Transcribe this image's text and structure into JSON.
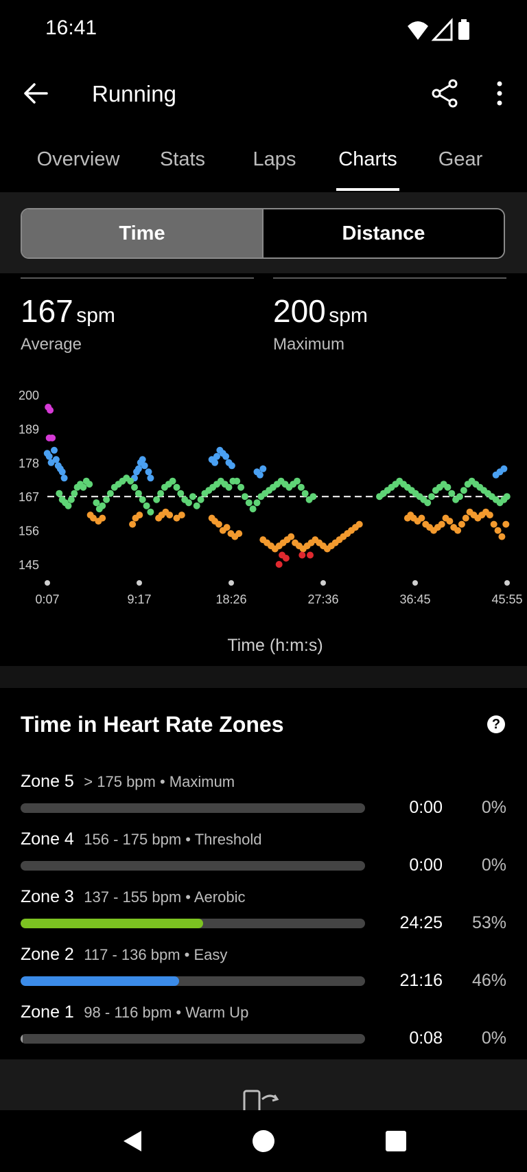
{
  "status_bar": {
    "time": "16:41",
    "icons": [
      "wifi-icon",
      "cell-signal-icon",
      "battery-icon"
    ]
  },
  "app_bar": {
    "title": "Running",
    "icons": [
      "back-arrow-icon",
      "share-icon",
      "more-vert-icon"
    ]
  },
  "tabs": [
    {
      "label": "Overview",
      "active": false
    },
    {
      "label": "Stats",
      "active": false
    },
    {
      "label": "Laps",
      "active": false
    },
    {
      "label": "Charts",
      "active": true
    },
    {
      "label": "Gear",
      "active": false
    }
  ],
  "segmented": {
    "time": "Time",
    "distance": "Distance",
    "selected": "time"
  },
  "stats": {
    "average": {
      "value": "167",
      "unit": "spm",
      "label": "Average"
    },
    "maximum": {
      "value": "200",
      "unit": "spm",
      "label": "Maximum"
    }
  },
  "chart_data": {
    "type": "scatter",
    "xlabel": "Time (h:m:s)",
    "ylabel": "",
    "y_ticks": [
      "200",
      "189",
      "178",
      "167",
      "156",
      "145"
    ],
    "x_ticks": [
      "0:07",
      "9:17",
      "18:26",
      "27:36",
      "36:45",
      "45:55"
    ],
    "ylim": [
      140,
      205
    ],
    "average_line": 167,
    "colors": {
      "purple": "#d63ad6",
      "blue": "#4aa0f2",
      "green": "#5fd476",
      "orange": "#f39a2e",
      "red": "#e0292f"
    },
    "series": [
      {
        "color": "purple",
        "points": [
          [
            0.2,
            196
          ],
          [
            0.4,
            195
          ],
          [
            0.3,
            186
          ],
          [
            0.6,
            186
          ]
        ]
      },
      {
        "color": "blue",
        "points": [
          [
            0.1,
            181
          ],
          [
            0.3,
            180
          ],
          [
            0.5,
            178
          ],
          [
            0.8,
            182
          ],
          [
            1.0,
            179
          ],
          [
            1.2,
            177
          ],
          [
            1.4,
            176
          ],
          [
            1.6,
            175
          ],
          [
            1.8,
            173
          ],
          [
            8.8,
            173
          ],
          [
            9.0,
            175
          ],
          [
            9.2,
            176
          ],
          [
            9.4,
            178
          ],
          [
            9.6,
            179
          ],
          [
            9.8,
            177
          ],
          [
            10.2,
            175
          ],
          [
            10.4,
            173
          ],
          [
            16.5,
            179
          ],
          [
            16.8,
            178
          ],
          [
            17.0,
            180
          ],
          [
            17.3,
            182
          ],
          [
            17.6,
            181
          ],
          [
            17.9,
            180
          ],
          [
            18.2,
            178
          ],
          [
            18.5,
            177
          ],
          [
            21.0,
            175
          ],
          [
            21.3,
            174
          ],
          [
            21.6,
            176
          ],
          [
            45.2,
            175
          ],
          [
            45.6,
            176
          ],
          [
            44.8,
            174
          ]
        ]
      },
      {
        "color": "green",
        "points": [
          [
            1.3,
            168
          ],
          [
            1.6,
            166
          ],
          [
            1.9,
            165
          ],
          [
            2.2,
            164
          ],
          [
            2.5,
            166
          ],
          [
            2.8,
            168
          ],
          [
            3.1,
            170
          ],
          [
            3.4,
            171
          ],
          [
            3.7,
            170
          ],
          [
            4.0,
            172
          ],
          [
            4.3,
            171
          ],
          [
            5.0,
            165
          ],
          [
            5.3,
            163
          ],
          [
            5.6,
            164
          ],
          [
            6.0,
            166
          ],
          [
            6.4,
            168
          ],
          [
            6.8,
            170
          ],
          [
            7.2,
            171
          ],
          [
            7.6,
            172
          ],
          [
            8.0,
            173
          ],
          [
            8.4,
            172
          ],
          [
            8.8,
            170
          ],
          [
            9.2,
            168
          ],
          [
            9.6,
            166
          ],
          [
            10.0,
            164
          ],
          [
            10.4,
            162
          ],
          [
            11.0,
            166
          ],
          [
            11.4,
            168
          ],
          [
            11.8,
            170
          ],
          [
            12.2,
            171
          ],
          [
            12.6,
            172
          ],
          [
            13.0,
            170
          ],
          [
            13.4,
            168
          ],
          [
            13.8,
            166
          ],
          [
            14.2,
            165
          ],
          [
            14.6,
            167
          ],
          [
            15.0,
            164
          ],
          [
            15.4,
            166
          ],
          [
            15.8,
            168
          ],
          [
            16.2,
            169
          ],
          [
            16.6,
            170
          ],
          [
            17.0,
            171
          ],
          [
            17.4,
            172
          ],
          [
            17.8,
            171
          ],
          [
            18.2,
            170
          ],
          [
            18.6,
            172
          ],
          [
            19.0,
            172
          ],
          [
            19.4,
            170
          ],
          [
            19.8,
            167
          ],
          [
            20.2,
            165
          ],
          [
            20.6,
            163
          ],
          [
            21.0,
            165
          ],
          [
            21.4,
            167
          ],
          [
            21.8,
            168
          ],
          [
            22.2,
            169
          ],
          [
            22.6,
            170
          ],
          [
            23.0,
            171
          ],
          [
            23.4,
            172
          ],
          [
            23.8,
            171
          ],
          [
            24.2,
            170
          ],
          [
            24.6,
            171
          ],
          [
            25.0,
            172
          ],
          [
            25.4,
            170
          ],
          [
            25.8,
            168
          ],
          [
            26.2,
            166
          ],
          [
            26.6,
            167
          ],
          [
            33.2,
            167
          ],
          [
            33.6,
            168
          ],
          [
            34.0,
            169
          ],
          [
            34.4,
            170
          ],
          [
            34.8,
            171
          ],
          [
            35.2,
            172
          ],
          [
            35.6,
            171
          ],
          [
            36.0,
            170
          ],
          [
            36.4,
            169
          ],
          [
            36.8,
            168
          ],
          [
            37.2,
            167
          ],
          [
            37.6,
            166
          ],
          [
            38.0,
            165
          ],
          [
            38.4,
            167
          ],
          [
            38.8,
            169
          ],
          [
            39.2,
            170
          ],
          [
            39.6,
            171
          ],
          [
            40.0,
            170
          ],
          [
            40.4,
            168
          ],
          [
            40.8,
            166
          ],
          [
            41.2,
            167
          ],
          [
            41.6,
            169
          ],
          [
            42.0,
            171
          ],
          [
            42.4,
            172
          ],
          [
            42.8,
            171
          ],
          [
            43.2,
            170
          ],
          [
            43.6,
            169
          ],
          [
            44.0,
            168
          ],
          [
            44.4,
            167
          ],
          [
            44.8,
            166
          ],
          [
            45.2,
            165
          ],
          [
            45.6,
            166
          ],
          [
            45.9,
            167
          ]
        ]
      },
      {
        "color": "orange",
        "points": [
          [
            4.4,
            161
          ],
          [
            4.7,
            160
          ],
          [
            5.2,
            159
          ],
          [
            5.6,
            160
          ],
          [
            8.6,
            158
          ],
          [
            8.9,
            160
          ],
          [
            9.3,
            161
          ],
          [
            11.2,
            160
          ],
          [
            11.5,
            161
          ],
          [
            11.9,
            162
          ],
          [
            12.3,
            161
          ],
          [
            13.0,
            160
          ],
          [
            13.5,
            161
          ],
          [
            16.5,
            160
          ],
          [
            16.8,
            159
          ],
          [
            17.2,
            158
          ],
          [
            17.6,
            156
          ],
          [
            18.0,
            157
          ],
          [
            18.4,
            155
          ],
          [
            18.8,
            154
          ],
          [
            19.2,
            155
          ],
          [
            21.6,
            153
          ],
          [
            22.0,
            152
          ],
          [
            22.4,
            151
          ],
          [
            22.8,
            150
          ],
          [
            23.2,
            151
          ],
          [
            23.6,
            152
          ],
          [
            24.0,
            153
          ],
          [
            24.4,
            154
          ],
          [
            24.8,
            152
          ],
          [
            25.2,
            151
          ],
          [
            25.6,
            150
          ],
          [
            26.0,
            151
          ],
          [
            26.4,
            152
          ],
          [
            26.8,
            153
          ],
          [
            27.2,
            152
          ],
          [
            27.6,
            151
          ],
          [
            28.0,
            150
          ],
          [
            28.4,
            151
          ],
          [
            28.8,
            152
          ],
          [
            29.2,
            153
          ],
          [
            29.6,
            154
          ],
          [
            30.0,
            155
          ],
          [
            30.4,
            156
          ],
          [
            30.8,
            157
          ],
          [
            31.2,
            158
          ],
          [
            36.0,
            160
          ],
          [
            36.3,
            161
          ],
          [
            36.6,
            160
          ],
          [
            37.0,
            159
          ],
          [
            37.4,
            160
          ],
          [
            37.8,
            158
          ],
          [
            38.2,
            157
          ],
          [
            38.6,
            156
          ],
          [
            39.0,
            157
          ],
          [
            39.4,
            158
          ],
          [
            39.8,
            160
          ],
          [
            40.2,
            159
          ],
          [
            40.6,
            157
          ],
          [
            41.0,
            156
          ],
          [
            41.4,
            158
          ],
          [
            41.8,
            160
          ],
          [
            42.2,
            162
          ],
          [
            42.6,
            161
          ],
          [
            43.0,
            160
          ],
          [
            43.4,
            161
          ],
          [
            43.8,
            162
          ],
          [
            44.2,
            161
          ],
          [
            44.6,
            158
          ],
          [
            45.0,
            156
          ],
          [
            45.4,
            154
          ],
          [
            45.8,
            158
          ]
        ]
      },
      {
        "color": "red",
        "points": [
          [
            23.2,
            145
          ],
          [
            23.5,
            148
          ],
          [
            23.9,
            147
          ],
          [
            25.5,
            148
          ],
          [
            26.3,
            148
          ]
        ]
      }
    ]
  },
  "zones": {
    "title": "Time in Heart Rate Zones",
    "items": [
      {
        "name": "Zone 5",
        "desc": "> 175 bpm • Maximum",
        "time": "0:00",
        "pct": "0%",
        "fraction": 0.0,
        "color": "#9e9e9e"
      },
      {
        "name": "Zone 4",
        "desc": "156 - 175 bpm • Threshold",
        "time": "0:00",
        "pct": "0%",
        "fraction": 0.0,
        "color": "#9e9e9e"
      },
      {
        "name": "Zone 3",
        "desc": "137 - 155 bpm • Aerobic",
        "time": "24:25",
        "pct": "53%",
        "fraction": 0.53,
        "color": "#7cc321"
      },
      {
        "name": "Zone 2",
        "desc": "117 - 136 bpm • Easy",
        "time": "21:16",
        "pct": "46%",
        "fraction": 0.46,
        "color": "#3b8be8"
      },
      {
        "name": "Zone 1",
        "desc": "98 - 116 bpm • Warm Up",
        "time": "0:08",
        "pct": "0%",
        "fraction": 0.003,
        "color": "#9e9e9e"
      }
    ]
  },
  "navbar": {
    "icons": [
      "nav-back-icon",
      "nav-home-icon",
      "nav-recents-icon"
    ]
  }
}
